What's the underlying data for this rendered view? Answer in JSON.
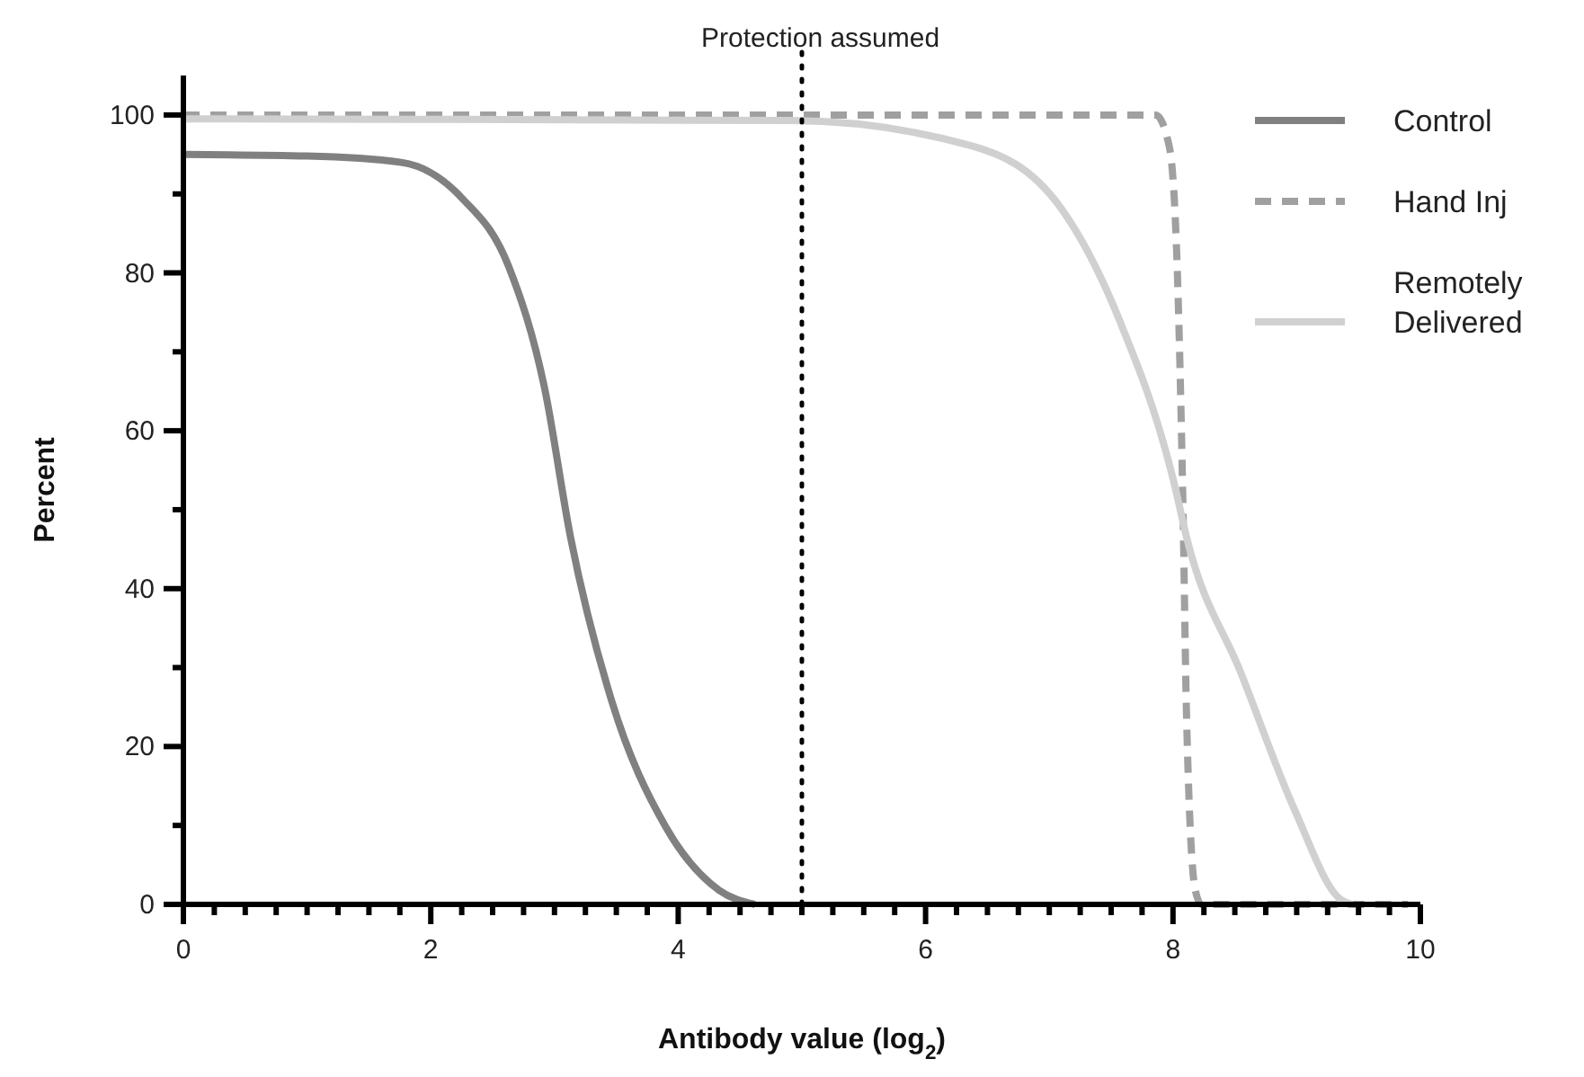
{
  "chart_data": {
    "type": "line",
    "xlabel": "Antibody value (log$_{2}$)",
    "ylabel": "Percent",
    "xlim": [
      0,
      10
    ],
    "ylim": [
      0,
      105
    ],
    "xticks": [
      0,
      {
        "value": 0.25,
        "label": null
      },
      {
        "value": 0.5,
        "label": null
      },
      {
        "value": 0.75,
        "label": null
      },
      {
        "value": 1,
        "label": null
      },
      {
        "value": 1.25,
        "label": null
      },
      {
        "value": 1.5,
        "label": null
      },
      {
        "value": 1.75,
        "label": null
      },
      2,
      {
        "value": 2.25,
        "label": null
      },
      {
        "value": 2.5,
        "label": null
      },
      {
        "value": 2.75,
        "label": null
      },
      {
        "value": 3,
        "label": null
      },
      {
        "value": 3.25,
        "label": null
      },
      {
        "value": 3.5,
        "label": null
      },
      {
        "value": 3.75,
        "label": null
      },
      4,
      {
        "value": 4.25,
        "label": null
      },
      {
        "value": 4.5,
        "label": null
      },
      {
        "value": 4.75,
        "label": null
      },
      {
        "value": 5,
        "label": null
      },
      {
        "value": 5.25,
        "label": null
      },
      {
        "value": 5.5,
        "label": null
      },
      {
        "value": 5.75,
        "label": null
      },
      6,
      {
        "value": 6.25,
        "label": null
      },
      {
        "value": 6.5,
        "label": null
      },
      {
        "value": 6.75,
        "label": null
      },
      {
        "value": 7,
        "label": null
      },
      {
        "value": 7.25,
        "label": null
      },
      {
        "value": 7.5,
        "label": null
      },
      {
        "value": 7.75,
        "label": null
      },
      8,
      {
        "value": 8.25,
        "label": null
      },
      {
        "value": 8.5,
        "label": null
      },
      {
        "value": 8.75,
        "label": null
      },
      {
        "value": 9,
        "label": null
      },
      {
        "value": 9.25,
        "label": null
      },
      {
        "value": 9.5,
        "label": null
      },
      {
        "value": 9.75,
        "label": null
      },
      10
    ],
    "yticks": [
      0,
      {
        "value": 10,
        "label": null
      },
      20,
      {
        "value": 30,
        "label": null
      },
      40,
      {
        "value": 50,
        "label": null
      },
      60,
      {
        "value": 70,
        "label": null
      },
      80,
      {
        "value": 90,
        "label": null
      },
      100
    ],
    "grid": false,
    "legend": "top right",
    "marker": "none",
    "ref_lines": [
      {
        "axis": "x",
        "value": 5,
        "label": "Protection assumed",
        "color": "#000000",
        "line_style": "dotted"
      }
    ],
    "series": [
      {
        "name": "Control",
        "color": "#808080",
        "line_style": "solid",
        "x": [
          0,
          1,
          1.76,
          2.25,
          2.63,
          2.92,
          3.13,
          3.46,
          3.9,
          4.33,
          4.62
        ],
        "values": [
          95,
          94.8,
          94,
          89.5,
          80.8,
          65.4,
          46.5,
          25.9,
          9.8,
          1.8,
          0
        ]
      },
      {
        "name": "Hand Inj",
        "color": "#a0a0a0",
        "line_style": "dashed",
        "x": [
          0,
          7.86,
          7.97,
          8.04,
          8.08,
          8.11,
          8.18,
          8.23,
          9.9
        ],
        "values": [
          100,
          100,
          96,
          77.8,
          51,
          23.6,
          1.8,
          0,
          0
        ]
      },
      {
        "name": "Remotely Delivered",
        "color": "#d0d0d0",
        "line_style": "solid",
        "x": [
          0,
          4.91,
          6.37,
          7.09,
          7.57,
          8.01,
          8.11,
          8.55,
          8.98,
          9.35,
          9.45
        ],
        "values": [
          99.5,
          99.3,
          96.1,
          88.3,
          73.9,
          53.3,
          46.5,
          29.3,
          12.1,
          0.7,
          0
        ]
      }
    ]
  }
}
